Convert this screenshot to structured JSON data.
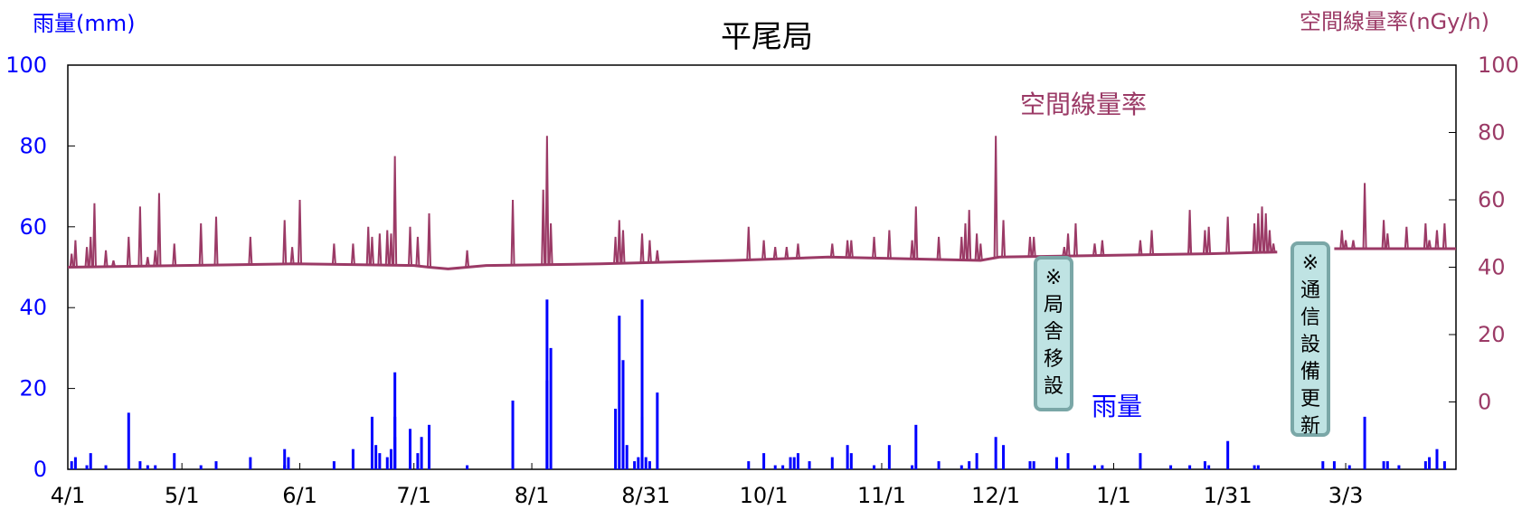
{
  "chart_data": {
    "type": "bar+line",
    "title": "平尾局",
    "left_axis": {
      "label": "雨量(mm)",
      "range": [
        0,
        100
      ],
      "ticks": [
        0,
        20,
        40,
        60,
        80,
        100
      ],
      "color": "#0000ff"
    },
    "right_axis": {
      "label": "空間線量率(nGy/h)",
      "range": [
        -20,
        100
      ],
      "ticks": [
        0,
        20,
        40,
        60,
        80,
        100
      ],
      "color": "#9b3a66"
    },
    "x_axis": {
      "range_days": [
        0,
        365
      ],
      "ticks": [
        {
          "label": "4/1",
          "day": 0
        },
        {
          "label": "5/1",
          "day": 30
        },
        {
          "label": "6/1",
          "day": 61
        },
        {
          "label": "7/1",
          "day": 91
        },
        {
          "label": "8/1",
          "day": 122
        },
        {
          "label": "8/31",
          "day": 152
        },
        {
          "label": "10/1",
          "day": 183
        },
        {
          "label": "11/1",
          "day": 214
        },
        {
          "label": "12/1",
          "day": 244
        },
        {
          "label": "1/1",
          "day": 275
        },
        {
          "label": "1/31",
          "day": 305
        },
        {
          "label": "3/3",
          "day": 336
        }
      ]
    },
    "series_labels": {
      "dose": "空間線量率",
      "rain": "雨量"
    },
    "rain_series": {
      "name": "雨量",
      "color": "#0000ff",
      "points": [
        [
          1,
          2
        ],
        [
          2,
          3
        ],
        [
          5,
          1
        ],
        [
          6,
          4
        ],
        [
          10,
          1
        ],
        [
          16,
          14
        ],
        [
          19,
          2
        ],
        [
          21,
          1
        ],
        [
          23,
          1
        ],
        [
          28,
          4
        ],
        [
          35,
          1
        ],
        [
          39,
          2
        ],
        [
          48,
          3
        ],
        [
          57,
          1
        ],
        [
          57,
          5
        ],
        [
          58,
          3
        ],
        [
          70,
          2
        ],
        [
          75,
          5
        ],
        [
          80,
          13
        ],
        [
          81,
          6
        ],
        [
          82,
          4
        ],
        [
          84,
          3
        ],
        [
          85,
          5
        ],
        [
          86,
          8
        ],
        [
          86,
          13
        ],
        [
          86,
          24
        ],
        [
          90,
          10
        ],
        [
          92,
          4
        ],
        [
          93,
          8
        ],
        [
          95,
          11
        ],
        [
          105,
          1
        ],
        [
          117,
          17
        ],
        [
          126,
          22
        ],
        [
          126,
          42
        ],
        [
          127,
          30
        ],
        [
          144,
          15
        ],
        [
          145,
          38
        ],
        [
          146,
          27
        ],
        [
          147,
          6
        ],
        [
          149,
          2
        ],
        [
          150,
          3
        ],
        [
          151,
          13
        ],
        [
          151,
          42
        ],
        [
          152,
          3
        ],
        [
          153,
          2
        ],
        [
          155,
          19
        ],
        [
          179,
          2
        ],
        [
          183,
          4
        ],
        [
          186,
          1
        ],
        [
          188,
          1
        ],
        [
          190,
          3
        ],
        [
          191,
          3
        ],
        [
          192,
          4
        ],
        [
          195,
          2
        ],
        [
          201,
          3
        ],
        [
          205,
          6
        ],
        [
          206,
          4
        ],
        [
          212,
          1
        ],
        [
          216,
          6
        ],
        [
          222,
          1
        ],
        [
          223,
          11
        ],
        [
          229,
          2
        ],
        [
          235,
          1
        ],
        [
          237,
          2
        ],
        [
          239,
          4
        ],
        [
          244,
          8
        ],
        [
          246,
          6
        ],
        [
          253,
          2
        ],
        [
          254,
          2
        ],
        [
          260,
          3
        ],
        [
          263,
          4
        ],
        [
          270,
          1
        ],
        [
          272,
          1
        ],
        [
          282,
          4
        ],
        [
          290,
          1
        ],
        [
          295,
          1
        ],
        [
          299,
          2
        ],
        [
          300,
          1
        ],
        [
          305,
          7
        ],
        [
          312,
          1
        ],
        [
          313,
          1
        ],
        [
          330,
          2
        ],
        [
          333,
          2
        ],
        [
          337,
          1
        ],
        [
          341,
          13
        ],
        [
          346,
          2
        ],
        [
          347,
          2
        ],
        [
          350,
          1
        ],
        [
          357,
          2
        ],
        [
          358,
          3
        ],
        [
          360,
          5
        ],
        [
          362,
          2
        ]
      ]
    },
    "dose_series": {
      "name": "空間線量率",
      "color": "#9b3a66",
      "baseline": [
        [
          0,
          40
        ],
        [
          30,
          40.5
        ],
        [
          60,
          41
        ],
        [
          91,
          40.5
        ],
        [
          95,
          40
        ],
        [
          100,
          39.5
        ],
        [
          110,
          40.5
        ],
        [
          140,
          41
        ],
        [
          175,
          42
        ],
        [
          200,
          43
        ],
        [
          240,
          42
        ],
        [
          245,
          43
        ],
        [
          300,
          44
        ],
        [
          318,
          44.5
        ],
        [
          319,
          null
        ],
        [
          332,
          null
        ],
        [
          333,
          45.5
        ],
        [
          365,
          45.5
        ]
      ],
      "spikes": [
        [
          1,
          44
        ],
        [
          2,
          48
        ],
        [
          5,
          46
        ],
        [
          6,
          49
        ],
        [
          7,
          59
        ],
        [
          10,
          45
        ],
        [
          12,
          42
        ],
        [
          16,
          49
        ],
        [
          19,
          58
        ],
        [
          21,
          43
        ],
        [
          23,
          45
        ],
        [
          24,
          62
        ],
        [
          28,
          47
        ],
        [
          35,
          53
        ],
        [
          39,
          55
        ],
        [
          48,
          49
        ],
        [
          57,
          54
        ],
        [
          59,
          46
        ],
        [
          61,
          60
        ],
        [
          70,
          47
        ],
        [
          75,
          47
        ],
        [
          79,
          52
        ],
        [
          80,
          49
        ],
        [
          82,
          50
        ],
        [
          84,
          51
        ],
        [
          85,
          50
        ],
        [
          86,
          73
        ],
        [
          90,
          52
        ],
        [
          92,
          49
        ],
        [
          95,
          56
        ],
        [
          105,
          45
        ],
        [
          117,
          60
        ],
        [
          125,
          63
        ],
        [
          126,
          79
        ],
        [
          127,
          53
        ],
        [
          144,
          49
        ],
        [
          145,
          54
        ],
        [
          146,
          51
        ],
        [
          151,
          50
        ],
        [
          153,
          48
        ],
        [
          155,
          45
        ],
        [
          179,
          52
        ],
        [
          183,
          48
        ],
        [
          186,
          46
        ],
        [
          189,
          46
        ],
        [
          192,
          47
        ],
        [
          201,
          47
        ],
        [
          205,
          48
        ],
        [
          206,
          48
        ],
        [
          212,
          49
        ],
        [
          216,
          51
        ],
        [
          222,
          48
        ],
        [
          223,
          58
        ],
        [
          229,
          49
        ],
        [
          235,
          49
        ],
        [
          236,
          53
        ],
        [
          237,
          57
        ],
        [
          239,
          50
        ],
        [
          240,
          47
        ],
        [
          244,
          79
        ],
        [
          246,
          54
        ],
        [
          253,
          49
        ],
        [
          254,
          49
        ],
        [
          262,
          46
        ],
        [
          263,
          50
        ],
        [
          265,
          53
        ],
        [
          270,
          47
        ],
        [
          272,
          48
        ],
        [
          282,
          48
        ],
        [
          285,
          51
        ],
        [
          295,
          50
        ],
        [
          295,
          57
        ],
        [
          299,
          51
        ],
        [
          300,
          52
        ],
        [
          305,
          55
        ],
        [
          312,
          53
        ],
        [
          313,
          56
        ],
        [
          314,
          58
        ],
        [
          315,
          56
        ],
        [
          316,
          51
        ],
        [
          317,
          47
        ],
        [
          333,
          50
        ],
        [
          335,
          51
        ],
        [
          336,
          48
        ],
        [
          338,
          48
        ],
        [
          341,
          65
        ],
        [
          346,
          54
        ],
        [
          347,
          50
        ],
        [
          352,
          52
        ],
        [
          357,
          53
        ],
        [
          358,
          48
        ],
        [
          360,
          51
        ],
        [
          362,
          53
        ]
      ]
    },
    "annotations": [
      {
        "name": "station-relocation-note",
        "text": "※局舎移設",
        "chars": [
          "※",
          "局",
          "舎",
          "移",
          "設"
        ]
      },
      {
        "name": "comm-upgrade-note",
        "text": "※通信設備更新",
        "chars": [
          "※",
          "通",
          "信",
          "設",
          "備",
          "更",
          "新"
        ]
      }
    ]
  }
}
